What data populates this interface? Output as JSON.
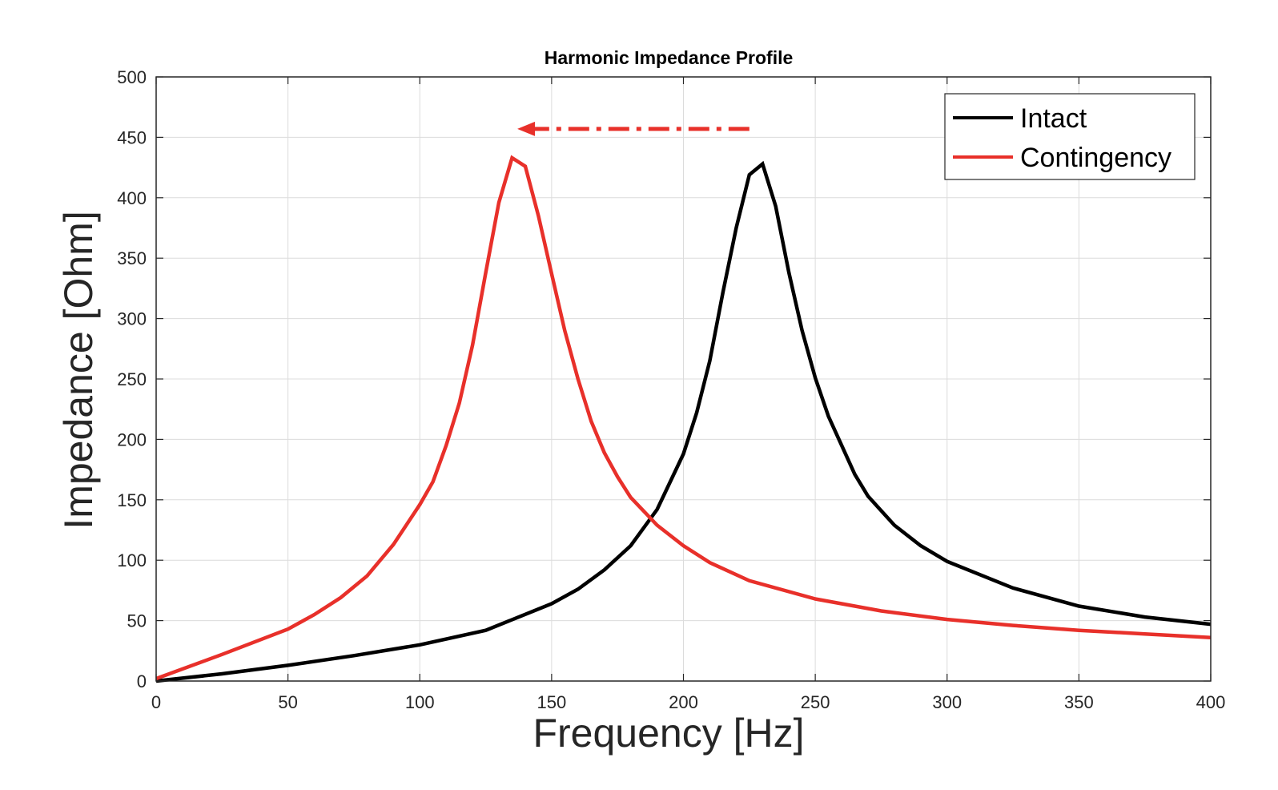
{
  "chart_data": {
    "type": "line",
    "title": "Harmonic Impedance Profile",
    "xlabel": "Frequency [Hz]",
    "ylabel": "Impedance [Ohm]",
    "xlim": [
      0,
      400
    ],
    "ylim": [
      0,
      500
    ],
    "xticks": [
      "0",
      "50",
      "100",
      "150",
      "200",
      "250",
      "300",
      "350",
      "400"
    ],
    "yticks": [
      "0",
      "50",
      "100",
      "150",
      "200",
      "250",
      "300",
      "350",
      "400",
      "450",
      "500"
    ],
    "grid": true,
    "legend_position": "top-right",
    "series": [
      {
        "name": "Intact",
        "color": "#000000",
        "x": [
          0,
          25,
          50,
          75,
          100,
          125,
          150,
          160,
          170,
          180,
          190,
          200,
          205,
          210,
          215,
          220,
          225,
          230,
          235,
          240,
          245,
          250,
          255,
          260,
          265,
          270,
          280,
          290,
          300,
          325,
          350,
          375,
          400
        ],
        "y": [
          0,
          6,
          13,
          21,
          30,
          42,
          64,
          76,
          92,
          112,
          142,
          188,
          222,
          265,
          322,
          375,
          419,
          428,
          393,
          338,
          290,
          251,
          219,
          195,
          171,
          153,
          129,
          112,
          99,
          77,
          62,
          53,
          47
        ]
      },
      {
        "name": "Contingency",
        "color": "#e8302a",
        "x": [
          0,
          25,
          50,
          60,
          70,
          80,
          90,
          100,
          105,
          110,
          115,
          120,
          125,
          130,
          135,
          140,
          145,
          150,
          155,
          160,
          165,
          170,
          175,
          180,
          190,
          200,
          210,
          225,
          250,
          275,
          300,
          325,
          350,
          375,
          400
        ],
        "y": [
          2,
          22,
          43,
          55,
          69,
          87,
          113,
          146,
          165,
          195,
          230,
          278,
          338,
          396,
          433,
          426,
          385,
          337,
          290,
          250,
          215,
          189,
          169,
          152,
          129,
          112,
          98,
          83,
          68,
          58,
          51,
          46,
          42,
          39,
          36
        ]
      }
    ],
    "annotations": [
      {
        "type": "arrow",
        "style": "dash-dot",
        "color": "#e8302a",
        "from": [
          225,
          457
        ],
        "to": [
          137,
          457
        ]
      }
    ]
  }
}
